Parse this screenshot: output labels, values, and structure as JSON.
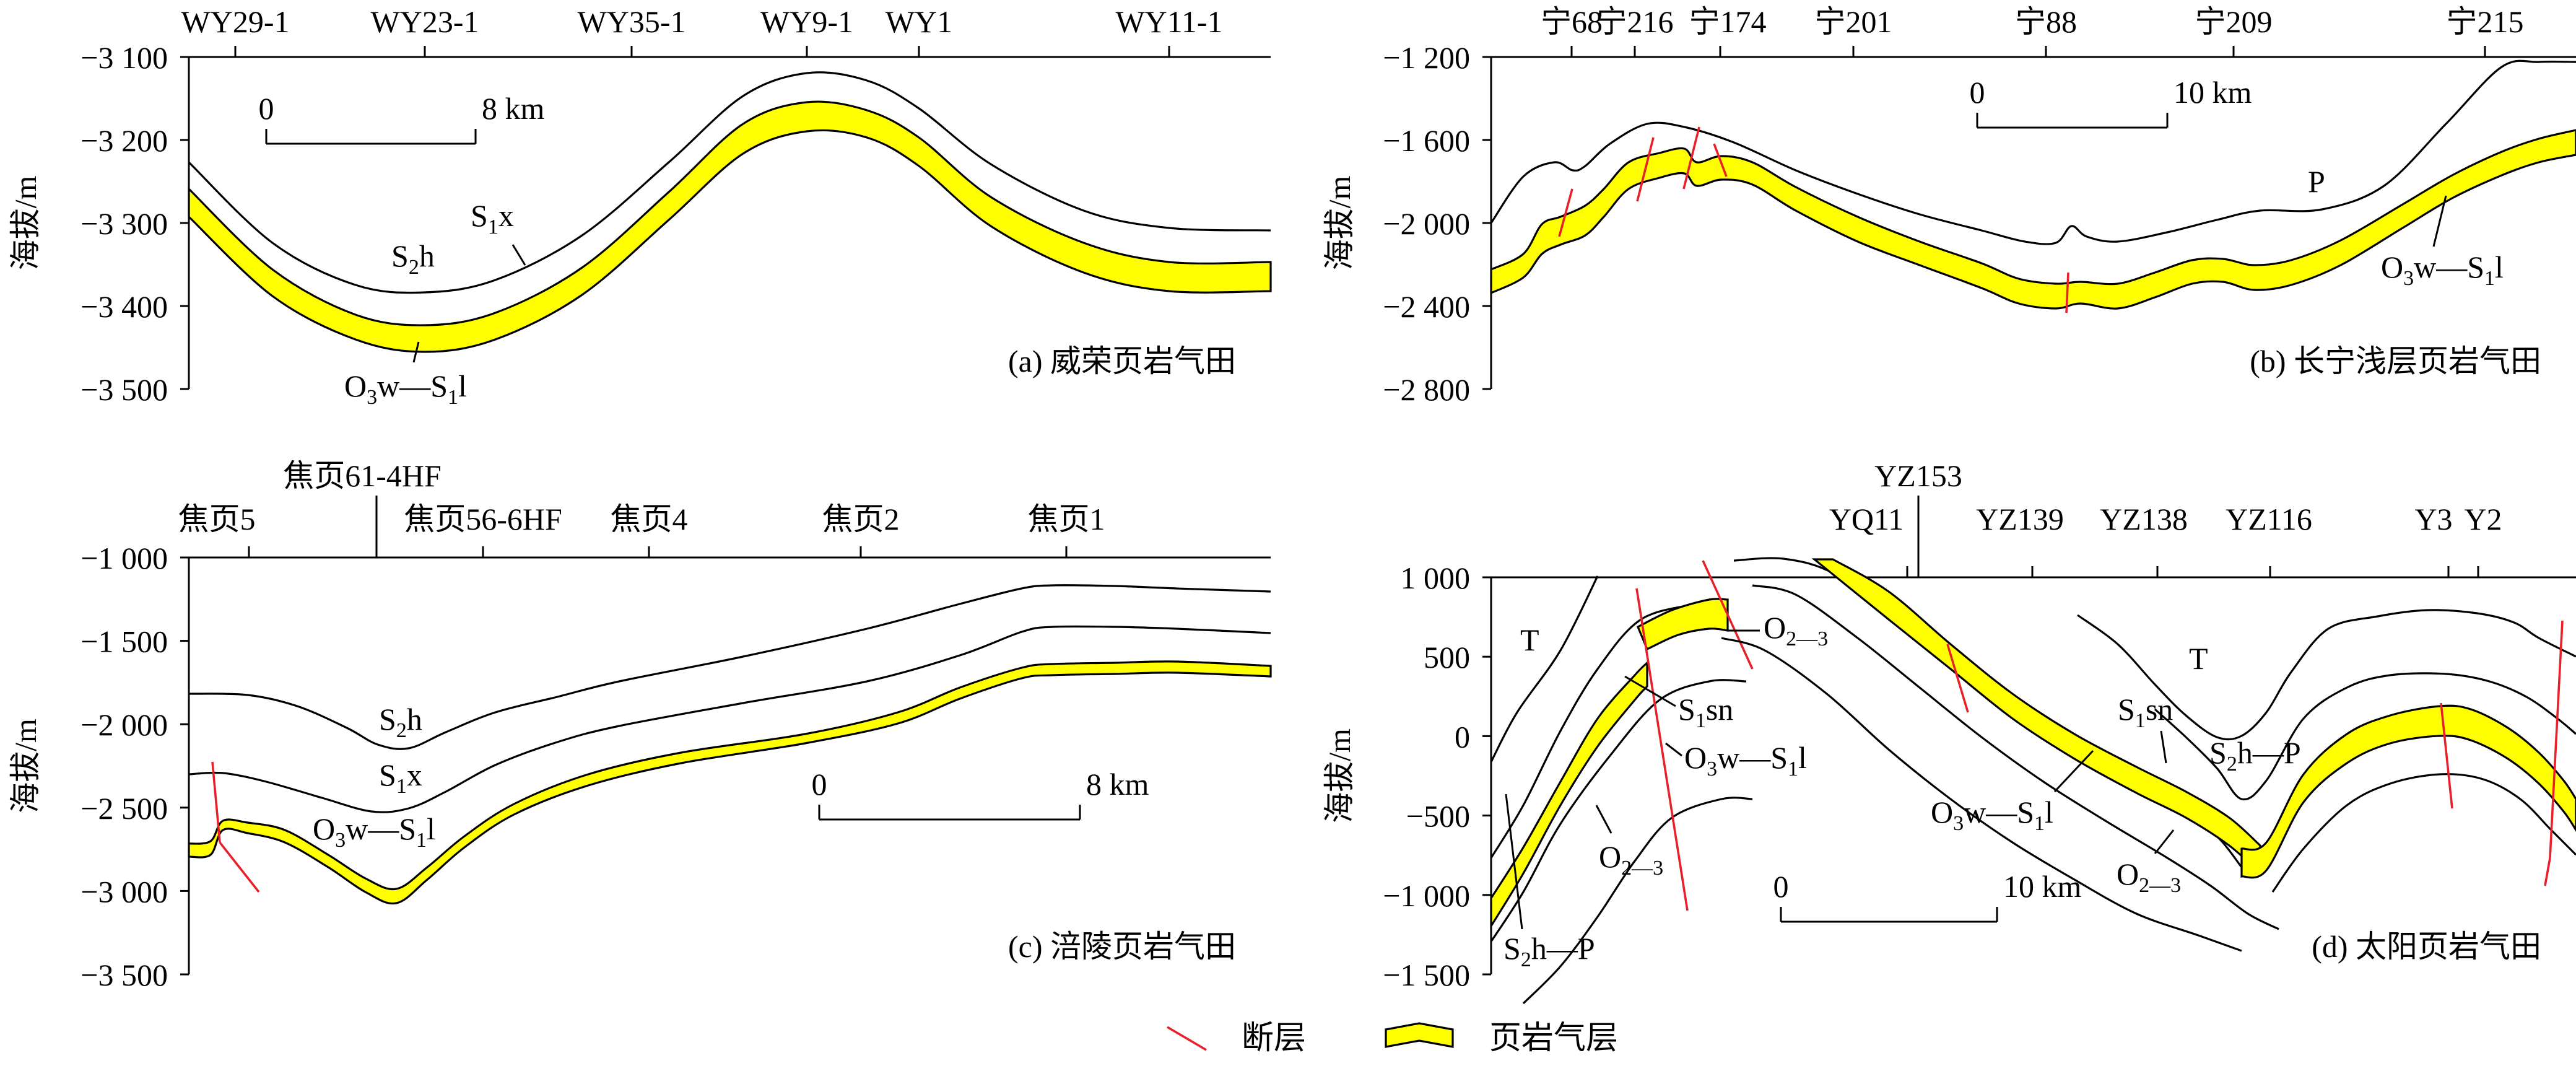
{
  "legend": {
    "fault_label": "断层",
    "shale_label": "页岩气层",
    "fault_color": "#e8202a",
    "shale_color": "#ffff00"
  },
  "chart_data": [
    {
      "type": "cross-section",
      "panel": "(a) 威荣页岩气田",
      "ylabel": "海拔/m",
      "ylim": [
        -3500,
        -3100
      ],
      "yticks": [
        "−3 100",
        "−3 200",
        "−3 300",
        "−3 400",
        "−3 500"
      ],
      "wells": [
        "WY29-1",
        "WY23-1",
        "WY35-1",
        "WY9-1",
        "WY1",
        "WY11-1"
      ],
      "scale": {
        "left": "0",
        "right": "8 km"
      },
      "units": [
        "S2h",
        "S1x",
        "O3w—S1l"
      ]
    },
    {
      "type": "cross-section",
      "panel": "(b) 长宁浅层页岩气田",
      "ylabel": "海拔/m",
      "ylim": [
        -2800,
        -1200
      ],
      "yticks": [
        "−1 200",
        "−1 600",
        "−2 000",
        "−2 400",
        "−2 800"
      ],
      "wells": [
        "宁68",
        "宁216",
        "宁174",
        "宁201",
        "宁88",
        "宁209",
        "宁215"
      ],
      "scale": {
        "left": "0",
        "right": "10 km"
      },
      "units": [
        "P",
        "O3w—S1l"
      ]
    },
    {
      "type": "cross-section",
      "panel": "(c) 涪陵页岩气田",
      "ylabel": "海拔/m",
      "ylim": [
        -3500,
        -1000
      ],
      "yticks": [
        "−1 000",
        "−1 500",
        "−2 000",
        "−2 500",
        "−3 000",
        "−3 500"
      ],
      "wells": [
        "焦页5",
        "焦页61-4HF",
        "焦页56-6HF",
        "焦页4",
        "焦页2",
        "焦页1"
      ],
      "scale": {
        "left": "0",
        "right": "8 km"
      },
      "units": [
        "S2h",
        "S1x",
        "O3w—S1l"
      ]
    },
    {
      "type": "cross-section",
      "panel": "(d) 太阳页岩气田",
      "ylabel": "海拔/m",
      "ylim": [
        -1500,
        1000
      ],
      "yticks": [
        "1 000",
        "500",
        "0",
        "−500",
        "−1 000",
        "−1 500"
      ],
      "wells": [
        "YZ153",
        "YQ11",
        "YZ139",
        "YZ138",
        "YZ116",
        "Y3",
        "Y2"
      ],
      "scale": {
        "left": "0",
        "right": "10 km"
      },
      "units": [
        "T",
        "O2—3",
        "S1sn",
        "O3w—S1l",
        "S2h—P"
      ]
    }
  ]
}
